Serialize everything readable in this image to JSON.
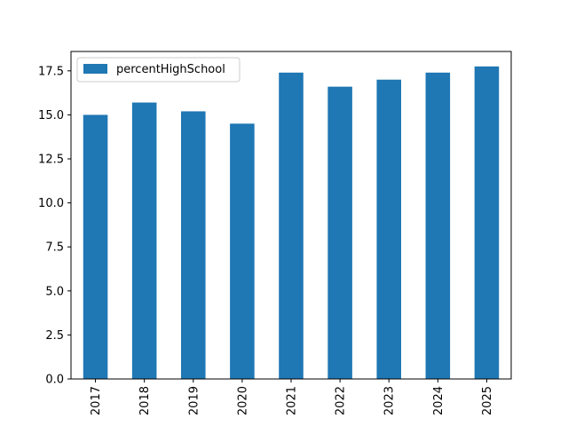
{
  "chart_data": {
    "type": "bar",
    "categories": [
      "2017",
      "2018",
      "2019",
      "2020",
      "2021",
      "2022",
      "2023",
      "2024",
      "2025"
    ],
    "series": [
      {
        "name": "percentHighSchool",
        "values": [
          15.0,
          15.7,
          15.2,
          14.5,
          17.4,
          16.6,
          17.0,
          17.4,
          17.75
        ]
      }
    ],
    "ylim": [
      0,
      18.6
    ],
    "yticks": [
      "0.0",
      "2.5",
      "5.0",
      "7.5",
      "10.0",
      "12.5",
      "15.0",
      "17.5"
    ],
    "xlabel": "",
    "ylabel": "",
    "grid": false,
    "legend_position": "top-left",
    "colors": {
      "bar": "#1f77b4",
      "axis": "#000000",
      "legend_border": "#cccccc"
    }
  }
}
